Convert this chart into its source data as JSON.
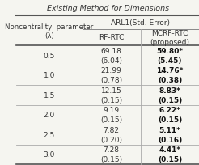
{
  "title": "Existing Method for Dimensions",
  "col_header_top": "ARL1(Std. Error)",
  "col_headers": [
    "RF-RTC",
    "MCRF-RTC\n(proposed)"
  ],
  "row_header_label": "Noncentrality  parameter\n(λ)",
  "rows": [
    {
      "lambda": "0.5",
      "rf_rtc": "69.18\n(6.04)",
      "mcrf_rtc": "59.80*\n(5.45)"
    },
    {
      "lambda": "1.0",
      "rf_rtc": "21.99\n(0.78)",
      "mcrf_rtc": "14.76*\n(0.38)"
    },
    {
      "lambda": "1.5",
      "rf_rtc": "12.15\n(0.15)",
      "mcrf_rtc": "8.83*\n(0.15)"
    },
    {
      "lambda": "2.0",
      "rf_rtc": "9.19\n(0.15)",
      "mcrf_rtc": "6.22*\n(0.15)"
    },
    {
      "lambda": "2.5",
      "rf_rtc": "7.82\n(0.20)",
      "mcrf_rtc": "5.11*\n(0.16)"
    },
    {
      "lambda": "3.0",
      "rf_rtc": "7.28\n(0.15)",
      "mcrf_rtc": "4.41*\n(0.15)"
    }
  ],
  "bg_color": "#f5f5f0",
  "line_color": "#888888",
  "bold_color": "#111111",
  "normal_color": "#333333"
}
